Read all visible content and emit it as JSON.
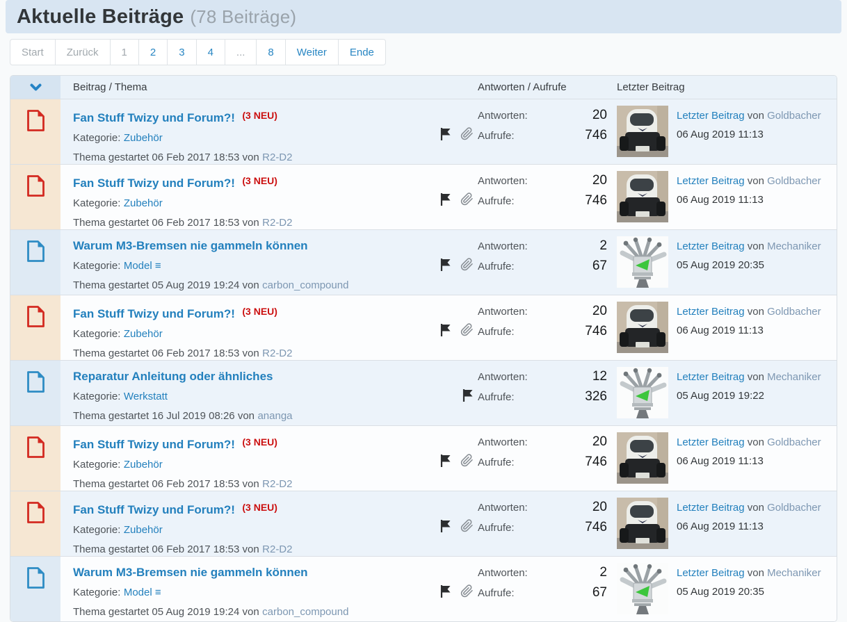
{
  "header": {
    "title": "Aktuelle Beiträge",
    "count": "(78 Beiträge)"
  },
  "pagination": [
    {
      "label": "Start",
      "enabled": false
    },
    {
      "label": "Zurück",
      "enabled": false
    },
    {
      "label": "1",
      "enabled": false
    },
    {
      "label": "2",
      "enabled": true
    },
    {
      "label": "3",
      "enabled": true
    },
    {
      "label": "4",
      "enabled": true
    },
    {
      "label": "...",
      "enabled": false
    },
    {
      "label": "8",
      "enabled": true
    },
    {
      "label": "Weiter",
      "enabled": true
    },
    {
      "label": "Ende",
      "enabled": true
    }
  ],
  "table": {
    "sort_icon": "chevron-down-icon",
    "headers": [
      "Beitrag / Thema",
      "Antworten / Aufrufe",
      "Letzter Beitrag"
    ],
    "labels": {
      "kategorie": "Kategorie:",
      "antworten": "Antworten:",
      "aufrufe": "Aufrufe:",
      "letzter_beitrag": "Letzter Beitrag",
      "von": "von"
    },
    "accent_colors": {
      "link_blue": "#2380bd",
      "new_red": "#cb1010",
      "unread_cell": "#f6e7d3",
      "read_cell": "#dfeaf4"
    }
  },
  "rows": [
    {
      "title": "Fan Stuff Twizy und Forum?!",
      "new_badge": "(3 NEU)",
      "unread": true,
      "category": "Zubehör",
      "started": "Thema gestartet 06 Feb 2017 18:53 von",
      "starter": "R2-D2",
      "flag": true,
      "attachment": true,
      "antworten": "20",
      "aufrufe": "746",
      "avatar": "twizy-photo",
      "last_user": "Goldbacher",
      "last_date": "06 Aug 2019 11:13"
    },
    {
      "title": "Fan Stuff Twizy und Forum?!",
      "new_badge": "(3 NEU)",
      "unread": true,
      "category": "Zubehör",
      "started": "Thema gestartet 06 Feb 2017 18:53 von",
      "starter": "R2-D2",
      "flag": true,
      "attachment": true,
      "antworten": "20",
      "aufrufe": "746",
      "avatar": "twizy-photo",
      "last_user": "Goldbacher",
      "last_date": "06 Aug 2019 11:13"
    },
    {
      "title": "Warum M3-Bremsen nie gammeln können",
      "new_badge": null,
      "unread": false,
      "category": "Model ≡",
      "started": "Thema gestartet 05 Aug 2019 19:24 von",
      "starter": "carbon_compound",
      "flag": true,
      "attachment": true,
      "antworten": "2",
      "aufrufe": "67",
      "avatar": "engine-graphic",
      "last_user": "Mechaniker",
      "last_date": "05 Aug 2019 20:35"
    },
    {
      "title": "Fan Stuff Twizy und Forum?!",
      "new_badge": "(3 NEU)",
      "unread": true,
      "category": "Zubehör",
      "started": "Thema gestartet 06 Feb 2017 18:53 von",
      "starter": "R2-D2",
      "flag": true,
      "attachment": true,
      "antworten": "20",
      "aufrufe": "746",
      "avatar": "twizy-photo",
      "last_user": "Goldbacher",
      "last_date": "06 Aug 2019 11:13"
    },
    {
      "title": "Reparatur Anleitung oder ähnliches",
      "new_badge": null,
      "unread": false,
      "category": "Werkstatt",
      "started": "Thema gestartet 16 Jul 2019 08:26 von",
      "starter": "ananga",
      "flag": true,
      "attachment": false,
      "antworten": "12",
      "aufrufe": "326",
      "avatar": "engine-graphic",
      "last_user": "Mechaniker",
      "last_date": "05 Aug 2019 19:22"
    },
    {
      "title": "Fan Stuff Twizy und Forum?!",
      "new_badge": "(3 NEU)",
      "unread": true,
      "category": "Zubehör",
      "started": "Thema gestartet 06 Feb 2017 18:53 von",
      "starter": "R2-D2",
      "flag": true,
      "attachment": true,
      "antworten": "20",
      "aufrufe": "746",
      "avatar": "twizy-photo",
      "last_user": "Goldbacher",
      "last_date": "06 Aug 2019 11:13"
    },
    {
      "title": "Fan Stuff Twizy und Forum?!",
      "new_badge": "(3 NEU)",
      "unread": true,
      "category": "Zubehör",
      "started": "Thema gestartet 06 Feb 2017 18:53 von",
      "starter": "R2-D2",
      "flag": true,
      "attachment": true,
      "antworten": "20",
      "aufrufe": "746",
      "avatar": "twizy-photo",
      "last_user": "Goldbacher",
      "last_date": "06 Aug 2019 11:13"
    },
    {
      "title": "Warum M3-Bremsen nie gammeln können",
      "new_badge": null,
      "unread": false,
      "category": "Model ≡",
      "started": "Thema gestartet 05 Aug 2019 19:24 von",
      "starter": "carbon_compound",
      "flag": true,
      "attachment": true,
      "antworten": "2",
      "aufrufe": "67",
      "avatar": "engine-graphic",
      "last_user": "Mechaniker",
      "last_date": "05 Aug 2019 20:35"
    }
  ]
}
